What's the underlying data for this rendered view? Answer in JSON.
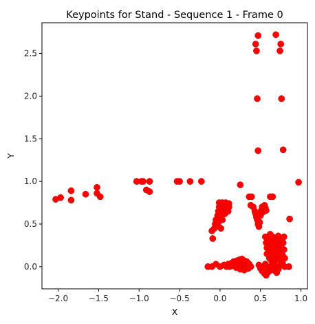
{
  "chart_data": {
    "type": "scatter",
    "title": "Keypoints for Stand - Sequence 1 - Frame 0",
    "xlabel": "X",
    "ylabel": "Y",
    "xlim": [
      -2.2,
      1.08
    ],
    "ylim": [
      -0.26,
      2.86
    ],
    "xticks": [
      -2.0,
      -1.5,
      -1.0,
      -0.5,
      0.0,
      0.5,
      1.0
    ],
    "xtick_labels": [
      "−2.0",
      "−1.5",
      "−1.0",
      "−0.5",
      "0.0",
      "0.5",
      "1.0"
    ],
    "yticks": [
      0.0,
      0.5,
      1.0,
      1.5,
      2.0,
      2.5
    ],
    "ytick_labels": [
      "0.0",
      "0.5",
      "1.0",
      "1.5",
      "2.0",
      "2.5"
    ],
    "grid": false,
    "color": "#ff0000",
    "points": [
      [
        -2.03,
        0.79
      ],
      [
        -1.97,
        0.81
      ],
      [
        -1.84,
        0.89
      ],
      [
        -1.84,
        0.78
      ],
      [
        -1.66,
        0.85
      ],
      [
        -1.52,
        0.93
      ],
      [
        -1.52,
        0.86
      ],
      [
        -1.48,
        0.82
      ],
      [
        -1.03,
        1.0
      ],
      [
        -0.97,
        1.0
      ],
      [
        -0.95,
        1.0
      ],
      [
        -0.91,
        0.9
      ],
      [
        -0.87,
        0.88
      ],
      [
        -0.87,
        1.0
      ],
      [
        -0.53,
        1.0
      ],
      [
        -0.5,
        1.0
      ],
      [
        -0.37,
        1.0
      ],
      [
        -0.23,
        1.0
      ],
      [
        -0.15,
        0.0
      ],
      [
        -0.1,
        0.0
      ],
      [
        -0.05,
        0.03
      ],
      [
        0.0,
        0.0
      ],
      [
        -0.1,
        0.42
      ],
      [
        -0.09,
        0.33
      ],
      [
        -0.07,
        0.45
      ],
      [
        -0.06,
        0.5
      ],
      [
        -0.05,
        0.55
      ],
      [
        -0.04,
        0.48
      ],
      [
        -0.03,
        0.6
      ],
      [
        -0.02,
        0.65
      ],
      [
        -0.02,
        0.52
      ],
      [
        -0.01,
        0.7
      ],
      [
        -0.01,
        0.75
      ],
      [
        0.0,
        0.57
      ],
      [
        0.0,
        0.62
      ],
      [
        0.01,
        0.73
      ],
      [
        0.01,
        0.45
      ],
      [
        0.02,
        0.68
      ],
      [
        0.02,
        0.6
      ],
      [
        0.03,
        0.75
      ],
      [
        0.03,
        0.55
      ],
      [
        0.04,
        0.7
      ],
      [
        0.04,
        0.65
      ],
      [
        0.05,
        0.72
      ],
      [
        0.06,
        0.62
      ],
      [
        0.07,
        0.75
      ],
      [
        0.08,
        0.68
      ],
      [
        0.09,
        0.72
      ],
      [
        0.1,
        0.65
      ],
      [
        0.11,
        0.74
      ],
      [
        0.11,
        0.7
      ],
      [
        0.05,
        0.02
      ],
      [
        0.08,
        0.0
      ],
      [
        0.1,
        0.03
      ],
      [
        0.12,
        0.0
      ],
      [
        0.14,
        0.04
      ],
      [
        0.16,
        0.01
      ],
      [
        0.17,
        0.06
      ],
      [
        0.19,
        0.02
      ],
      [
        0.2,
        -0.01
      ],
      [
        0.21,
        0.07
      ],
      [
        0.22,
        0.03
      ],
      [
        0.23,
        0.0
      ],
      [
        0.24,
        0.08
      ],
      [
        0.25,
        0.05
      ],
      [
        0.26,
        0.01
      ],
      [
        0.27,
        0.09
      ],
      [
        0.28,
        0.04
      ],
      [
        0.29,
        0.0
      ],
      [
        0.3,
        0.07
      ],
      [
        0.31,
        0.03
      ],
      [
        0.32,
        0.01
      ],
      [
        0.33,
        0.06
      ],
      [
        0.34,
        0.0
      ],
      [
        0.36,
        0.03
      ],
      [
        0.38,
        0.0
      ],
      [
        0.25,
        -0.03
      ],
      [
        0.3,
        -0.04
      ],
      [
        0.35,
        -0.02
      ],
      [
        0.25,
        0.96
      ],
      [
        0.36,
        0.82
      ],
      [
        0.39,
        0.82
      ],
      [
        0.38,
        0.72
      ],
      [
        0.41,
        0.7
      ],
      [
        0.43,
        0.65
      ],
      [
        0.44,
        0.62
      ],
      [
        0.45,
        0.58
      ],
      [
        0.46,
        0.55
      ],
      [
        0.47,
        0.5
      ],
      [
        0.48,
        0.47
      ],
      [
        0.49,
        0.52
      ],
      [
        0.5,
        0.6
      ],
      [
        0.51,
        0.66
      ],
      [
        0.52,
        0.7
      ],
      [
        0.53,
        0.64
      ],
      [
        0.54,
        0.68
      ],
      [
        0.55,
        0.72
      ],
      [
        0.56,
        0.69
      ],
      [
        0.57,
        0.66
      ],
      [
        0.62,
        0.82
      ],
      [
        0.65,
        0.82
      ],
      [
        0.48,
        0.02
      ],
      [
        0.5,
        -0.02
      ],
      [
        0.52,
        -0.05
      ],
      [
        0.54,
        0.0
      ],
      [
        0.55,
        -0.08
      ],
      [
        0.56,
        0.03
      ],
      [
        0.57,
        -0.1
      ],
      [
        0.58,
        0.0
      ],
      [
        0.6,
        -0.06
      ],
      [
        0.62,
        -0.02
      ],
      [
        0.64,
        0.01
      ],
      [
        0.66,
        -0.04
      ],
      [
        0.68,
        0.0
      ],
      [
        0.7,
        -0.07
      ],
      [
        0.72,
        -0.03
      ],
      [
        0.74,
        0.01
      ],
      [
        0.77,
        0.05
      ],
      [
        0.8,
        0.0
      ],
      [
        0.85,
        0.0
      ],
      [
        0.56,
        0.35
      ],
      [
        0.57,
        0.28
      ],
      [
        0.58,
        0.22
      ],
      [
        0.58,
        0.15
      ],
      [
        0.59,
        0.32
      ],
      [
        0.6,
        0.25
      ],
      [
        0.6,
        0.18
      ],
      [
        0.61,
        0.1
      ],
      [
        0.62,
        0.38
      ],
      [
        0.62,
        0.3
      ],
      [
        0.63,
        0.22
      ],
      [
        0.63,
        0.14
      ],
      [
        0.64,
        0.06
      ],
      [
        0.65,
        0.35
      ],
      [
        0.65,
        0.27
      ],
      [
        0.66,
        0.19
      ],
      [
        0.66,
        0.11
      ],
      [
        0.67,
        0.03
      ],
      [
        0.68,
        0.33
      ],
      [
        0.68,
        0.24
      ],
      [
        0.69,
        0.16
      ],
      [
        0.7,
        0.08
      ],
      [
        0.7,
        0.3
      ],
      [
        0.71,
        0.21
      ],
      [
        0.72,
        0.13
      ],
      [
        0.72,
        0.36
      ],
      [
        0.73,
        0.26
      ],
      [
        0.74,
        0.18
      ],
      [
        0.74,
        0.09
      ],
      [
        0.75,
        0.32
      ],
      [
        0.76,
        0.22
      ],
      [
        0.77,
        0.14
      ],
      [
        0.77,
        0.05
      ],
      [
        0.78,
        0.28
      ],
      [
        0.79,
        0.2
      ],
      [
        0.79,
        0.35
      ],
      [
        0.8,
        0.1
      ],
      [
        0.86,
        0.56
      ],
      [
        0.97,
        0.99
      ],
      [
        0.85,
        0.0
      ],
      [
        0.44,
        2.61
      ],
      [
        0.45,
        2.53
      ],
      [
        0.47,
        2.71
      ],
      [
        0.69,
        2.72
      ],
      [
        0.74,
        2.53
      ],
      [
        0.75,
        2.61
      ],
      [
        0.46,
        1.97
      ],
      [
        0.76,
        1.97
      ],
      [
        0.47,
        1.36
      ],
      [
        0.78,
        1.37
      ]
    ]
  }
}
